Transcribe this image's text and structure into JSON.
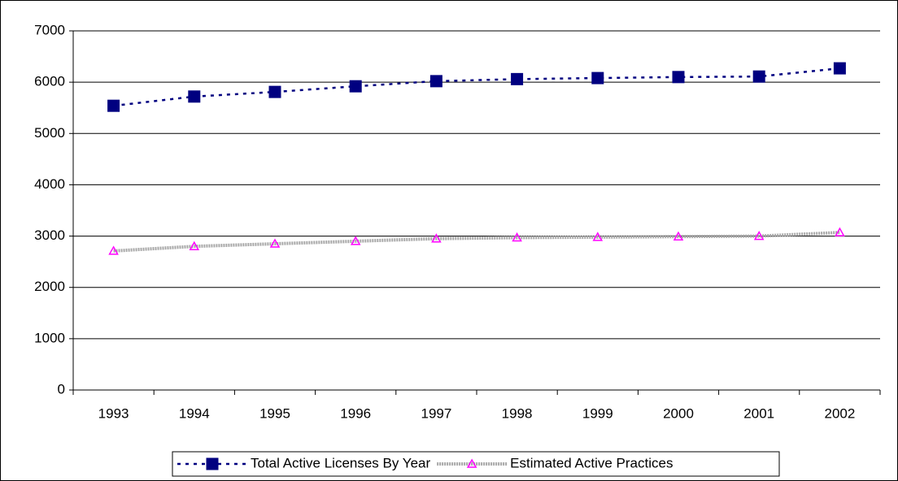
{
  "chart_data": {
    "type": "line",
    "categories": [
      "1993",
      "1994",
      "1995",
      "1996",
      "1997",
      "1998",
      "1999",
      "2000",
      "2001",
      "2002"
    ],
    "series": [
      {
        "name": "Total Active Licenses By Year",
        "color": "#000080",
        "values": [
          5540,
          5720,
          5810,
          5920,
          6020,
          6060,
          6080,
          6100,
          6110,
          6270
        ]
      },
      {
        "name": "Estimated Active Practices",
        "color": "#ff00ff",
        "values": [
          2710,
          2800,
          2850,
          2900,
          2950,
          2970,
          2980,
          2990,
          3000,
          3070
        ]
      }
    ],
    "ylim": [
      0,
      7000
    ],
    "yticks": [
      0,
      1000,
      2000,
      3000,
      4000,
      5000,
      6000,
      7000
    ],
    "grid": true,
    "legend": "bottom"
  }
}
